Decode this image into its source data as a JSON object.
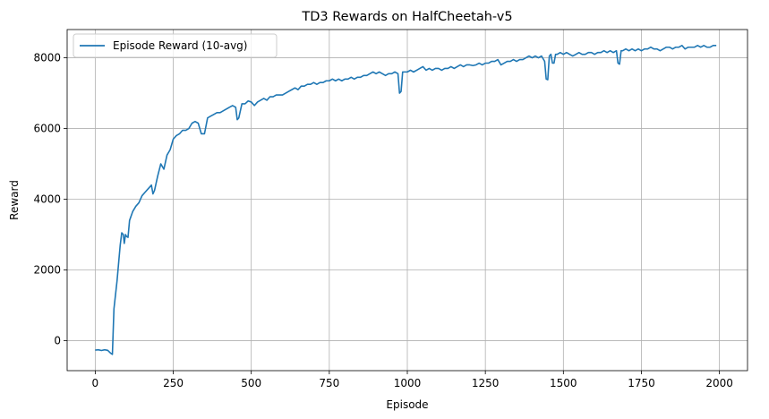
{
  "chart_data": {
    "type": "line",
    "title": "TD3 Rewards on HalfCheetah-v5",
    "xlabel": "Episode",
    "ylabel": "Reward",
    "xlim": [
      -90,
      2090
    ],
    "ylim": [
      -850,
      8800
    ],
    "xticks": [
      0,
      250,
      500,
      750,
      1000,
      1250,
      1500,
      1750,
      2000
    ],
    "yticks": [
      0,
      2000,
      4000,
      6000,
      8000
    ],
    "grid": true,
    "legend_position": "top-left",
    "series": [
      {
        "name": "Episode Reward (10-avg)",
        "color": "#1f77b4",
        "points": [
          [
            0,
            -270
          ],
          [
            10,
            -260
          ],
          [
            20,
            -280
          ],
          [
            30,
            -260
          ],
          [
            40,
            -275
          ],
          [
            50,
            -360
          ],
          [
            55,
            -390
          ],
          [
            60,
            900
          ],
          [
            65,
            1300
          ],
          [
            70,
            1700
          ],
          [
            75,
            2200
          ],
          [
            80,
            2700
          ],
          [
            85,
            3050
          ],
          [
            90,
            3000
          ],
          [
            93,
            2750
          ],
          [
            97,
            3000
          ],
          [
            100,
            2950
          ],
          [
            105,
            2920
          ],
          [
            110,
            3400
          ],
          [
            120,
            3650
          ],
          [
            130,
            3800
          ],
          [
            140,
            3900
          ],
          [
            150,
            4100
          ],
          [
            160,
            4200
          ],
          [
            170,
            4300
          ],
          [
            180,
            4400
          ],
          [
            185,
            4150
          ],
          [
            190,
            4250
          ],
          [
            200,
            4650
          ],
          [
            210,
            5000
          ],
          [
            220,
            4850
          ],
          [
            230,
            5250
          ],
          [
            240,
            5400
          ],
          [
            250,
            5700
          ],
          [
            260,
            5800
          ],
          [
            270,
            5850
          ],
          [
            280,
            5950
          ],
          [
            290,
            5950
          ],
          [
            300,
            6000
          ],
          [
            310,
            6150
          ],
          [
            320,
            6200
          ],
          [
            330,
            6150
          ],
          [
            340,
            5850
          ],
          [
            350,
            5850
          ],
          [
            360,
            6300
          ],
          [
            370,
            6350
          ],
          [
            380,
            6400
          ],
          [
            390,
            6450
          ],
          [
            400,
            6450
          ],
          [
            410,
            6500
          ],
          [
            420,
            6550
          ],
          [
            430,
            6600
          ],
          [
            440,
            6650
          ],
          [
            450,
            6600
          ],
          [
            455,
            6250
          ],
          [
            460,
            6300
          ],
          [
            470,
            6700
          ],
          [
            480,
            6700
          ],
          [
            490,
            6780
          ],
          [
            500,
            6750
          ],
          [
            510,
            6650
          ],
          [
            520,
            6750
          ],
          [
            530,
            6800
          ],
          [
            540,
            6850
          ],
          [
            550,
            6800
          ],
          [
            560,
            6900
          ],
          [
            570,
            6900
          ],
          [
            580,
            6950
          ],
          [
            590,
            6950
          ],
          [
            600,
            6950
          ],
          [
            610,
            7000
          ],
          [
            620,
            7050
          ],
          [
            630,
            7100
          ],
          [
            640,
            7150
          ],
          [
            650,
            7100
          ],
          [
            660,
            7200
          ],
          [
            670,
            7200
          ],
          [
            680,
            7250
          ],
          [
            690,
            7250
          ],
          [
            700,
            7300
          ],
          [
            710,
            7250
          ],
          [
            720,
            7300
          ],
          [
            730,
            7300
          ],
          [
            740,
            7350
          ],
          [
            750,
            7350
          ],
          [
            760,
            7400
          ],
          [
            770,
            7350
          ],
          [
            780,
            7400
          ],
          [
            790,
            7350
          ],
          [
            800,
            7400
          ],
          [
            810,
            7400
          ],
          [
            820,
            7450
          ],
          [
            830,
            7400
          ],
          [
            840,
            7450
          ],
          [
            850,
            7450
          ],
          [
            860,
            7500
          ],
          [
            870,
            7500
          ],
          [
            880,
            7550
          ],
          [
            890,
            7600
          ],
          [
            900,
            7550
          ],
          [
            910,
            7600
          ],
          [
            920,
            7550
          ],
          [
            930,
            7500
          ],
          [
            940,
            7550
          ],
          [
            950,
            7550
          ],
          [
            960,
            7600
          ],
          [
            970,
            7550
          ],
          [
            975,
            7000
          ],
          [
            980,
            7050
          ],
          [
            985,
            7600
          ],
          [
            990,
            7600
          ],
          [
            1000,
            7600
          ],
          [
            1010,
            7650
          ],
          [
            1020,
            7600
          ],
          [
            1030,
            7650
          ],
          [
            1040,
            7700
          ],
          [
            1050,
            7750
          ],
          [
            1060,
            7650
          ],
          [
            1070,
            7700
          ],
          [
            1080,
            7650
          ],
          [
            1090,
            7700
          ],
          [
            1100,
            7700
          ],
          [
            1110,
            7650
          ],
          [
            1120,
            7700
          ],
          [
            1130,
            7700
          ],
          [
            1140,
            7750
          ],
          [
            1150,
            7700
          ],
          [
            1160,
            7750
          ],
          [
            1170,
            7800
          ],
          [
            1180,
            7750
          ],
          [
            1190,
            7800
          ],
          [
            1200,
            7800
          ],
          [
            1210,
            7780
          ],
          [
            1220,
            7800
          ],
          [
            1230,
            7850
          ],
          [
            1240,
            7800
          ],
          [
            1250,
            7850
          ],
          [
            1260,
            7850
          ],
          [
            1270,
            7900
          ],
          [
            1280,
            7900
          ],
          [
            1290,
            7950
          ],
          [
            1300,
            7800
          ],
          [
            1310,
            7850
          ],
          [
            1320,
            7900
          ],
          [
            1330,
            7900
          ],
          [
            1340,
            7950
          ],
          [
            1350,
            7900
          ],
          [
            1360,
            7950
          ],
          [
            1370,
            7950
          ],
          [
            1380,
            8000
          ],
          [
            1390,
            8050
          ],
          [
            1400,
            8000
          ],
          [
            1410,
            8050
          ],
          [
            1420,
            8000
          ],
          [
            1430,
            8050
          ],
          [
            1440,
            7900
          ],
          [
            1445,
            7400
          ],
          [
            1450,
            7380
          ],
          [
            1455,
            8050
          ],
          [
            1460,
            8100
          ],
          [
            1465,
            7850
          ],
          [
            1470,
            7850
          ],
          [
            1475,
            8100
          ],
          [
            1480,
            8100
          ],
          [
            1490,
            8150
          ],
          [
            1500,
            8100
          ],
          [
            1510,
            8150
          ],
          [
            1520,
            8100
          ],
          [
            1530,
            8050
          ],
          [
            1540,
            8100
          ],
          [
            1550,
            8150
          ],
          [
            1560,
            8100
          ],
          [
            1570,
            8100
          ],
          [
            1580,
            8150
          ],
          [
            1590,
            8150
          ],
          [
            1600,
            8100
          ],
          [
            1610,
            8150
          ],
          [
            1620,
            8150
          ],
          [
            1630,
            8200
          ],
          [
            1640,
            8150
          ],
          [
            1650,
            8200
          ],
          [
            1660,
            8150
          ],
          [
            1670,
            8200
          ],
          [
            1675,
            7850
          ],
          [
            1680,
            7820
          ],
          [
            1685,
            8200
          ],
          [
            1690,
            8200
          ],
          [
            1700,
            8250
          ],
          [
            1710,
            8200
          ],
          [
            1720,
            8250
          ],
          [
            1730,
            8200
          ],
          [
            1740,
            8250
          ],
          [
            1750,
            8200
          ],
          [
            1760,
            8250
          ],
          [
            1770,
            8250
          ],
          [
            1780,
            8300
          ],
          [
            1790,
            8250
          ],
          [
            1800,
            8250
          ],
          [
            1810,
            8200
          ],
          [
            1820,
            8250
          ],
          [
            1830,
            8300
          ],
          [
            1840,
            8300
          ],
          [
            1850,
            8250
          ],
          [
            1860,
            8300
          ],
          [
            1870,
            8300
          ],
          [
            1880,
            8350
          ],
          [
            1890,
            8250
          ],
          [
            1900,
            8300
          ],
          [
            1910,
            8300
          ],
          [
            1920,
            8300
          ],
          [
            1930,
            8350
          ],
          [
            1940,
            8300
          ],
          [
            1950,
            8350
          ],
          [
            1960,
            8300
          ],
          [
            1970,
            8300
          ],
          [
            1980,
            8350
          ],
          [
            1990,
            8350
          ]
        ]
      }
    ]
  }
}
